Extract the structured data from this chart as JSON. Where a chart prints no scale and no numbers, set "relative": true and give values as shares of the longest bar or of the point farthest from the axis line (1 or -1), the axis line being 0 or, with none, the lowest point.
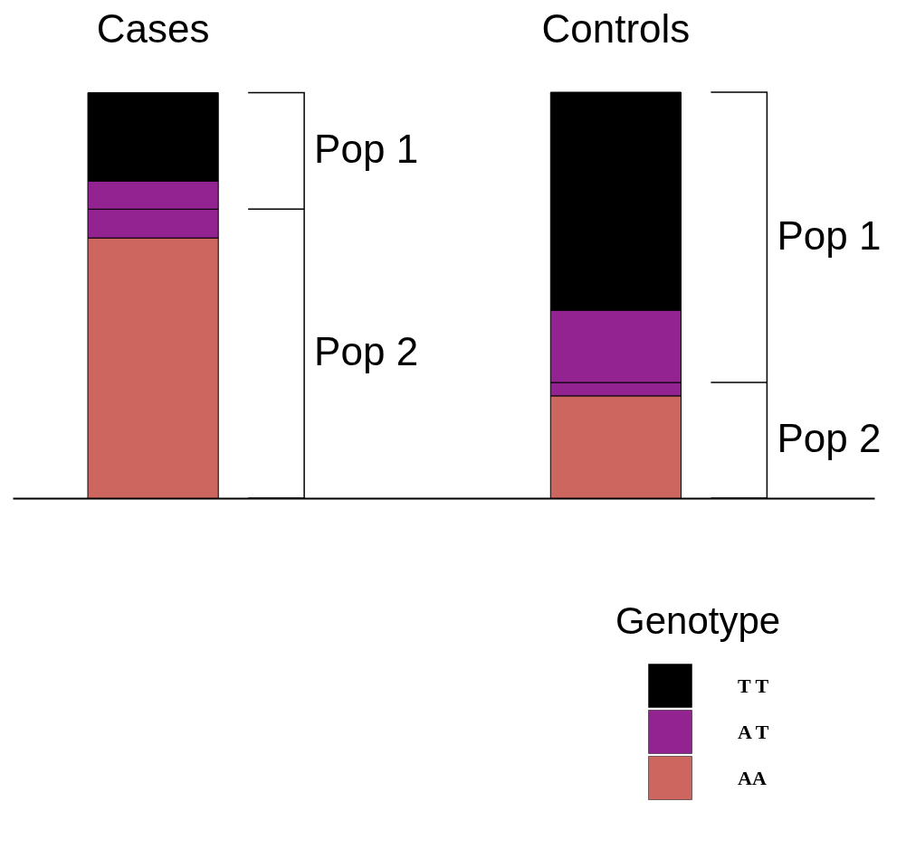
{
  "chart_data": {
    "type": "bar",
    "stacked": true,
    "relative": true,
    "categories": [
      "Cases",
      "Controls"
    ],
    "series": [
      {
        "name": "AA",
        "color": "#cd665f",
        "values": [
          0.641,
          0.252
        ]
      },
      {
        "color": "#922391",
        "values": [
          0.071,
          0.033
        ]
      },
      {
        "name": "A T",
        "color": "#922391",
        "values": [
          0.069,
          0.178
        ]
      },
      {
        "name": "T T",
        "color": "#000000",
        "values": [
          0.218,
          0.537
        ]
      }
    ],
    "legend_title": "Genotype",
    "legend": "bottom right",
    "annotations": [
      "Pop 1",
      "Pop 2",
      "Pop 1",
      "Pop 2"
    ]
  }
}
